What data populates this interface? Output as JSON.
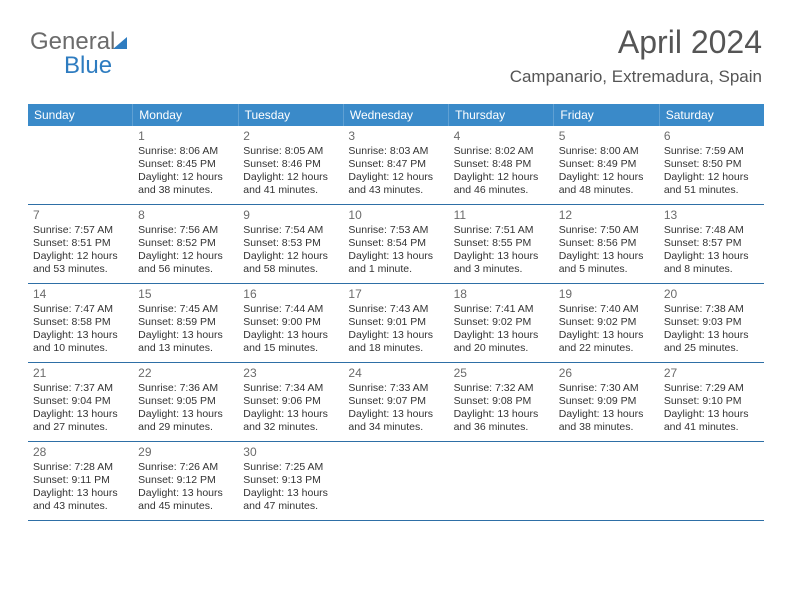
{
  "logo": {
    "text1": "General",
    "text2": "Blue"
  },
  "header": {
    "month": "April 2024",
    "location": "Campanario, Extremadura, Spain"
  },
  "colors": {
    "accent": "#3a8ac9",
    "rule": "#2e6fa6",
    "text": "#333333",
    "muted": "#6b6b6b"
  },
  "weekdays": [
    "Sunday",
    "Monday",
    "Tuesday",
    "Wednesday",
    "Thursday",
    "Friday",
    "Saturday"
  ],
  "weeks": [
    [
      null,
      {
        "n": "1",
        "sr": "Sunrise: 8:06 AM",
        "ss": "Sunset: 8:45 PM",
        "d1": "Daylight: 12 hours",
        "d2": "and 38 minutes."
      },
      {
        "n": "2",
        "sr": "Sunrise: 8:05 AM",
        "ss": "Sunset: 8:46 PM",
        "d1": "Daylight: 12 hours",
        "d2": "and 41 minutes."
      },
      {
        "n": "3",
        "sr": "Sunrise: 8:03 AM",
        "ss": "Sunset: 8:47 PM",
        "d1": "Daylight: 12 hours",
        "d2": "and 43 minutes."
      },
      {
        "n": "4",
        "sr": "Sunrise: 8:02 AM",
        "ss": "Sunset: 8:48 PM",
        "d1": "Daylight: 12 hours",
        "d2": "and 46 minutes."
      },
      {
        "n": "5",
        "sr": "Sunrise: 8:00 AM",
        "ss": "Sunset: 8:49 PM",
        "d1": "Daylight: 12 hours",
        "d2": "and 48 minutes."
      },
      {
        "n": "6",
        "sr": "Sunrise: 7:59 AM",
        "ss": "Sunset: 8:50 PM",
        "d1": "Daylight: 12 hours",
        "d2": "and 51 minutes."
      }
    ],
    [
      {
        "n": "7",
        "sr": "Sunrise: 7:57 AM",
        "ss": "Sunset: 8:51 PM",
        "d1": "Daylight: 12 hours",
        "d2": "and 53 minutes."
      },
      {
        "n": "8",
        "sr": "Sunrise: 7:56 AM",
        "ss": "Sunset: 8:52 PM",
        "d1": "Daylight: 12 hours",
        "d2": "and 56 minutes."
      },
      {
        "n": "9",
        "sr": "Sunrise: 7:54 AM",
        "ss": "Sunset: 8:53 PM",
        "d1": "Daylight: 12 hours",
        "d2": "and 58 minutes."
      },
      {
        "n": "10",
        "sr": "Sunrise: 7:53 AM",
        "ss": "Sunset: 8:54 PM",
        "d1": "Daylight: 13 hours",
        "d2": "and 1 minute."
      },
      {
        "n": "11",
        "sr": "Sunrise: 7:51 AM",
        "ss": "Sunset: 8:55 PM",
        "d1": "Daylight: 13 hours",
        "d2": "and 3 minutes."
      },
      {
        "n": "12",
        "sr": "Sunrise: 7:50 AM",
        "ss": "Sunset: 8:56 PM",
        "d1": "Daylight: 13 hours",
        "d2": "and 5 minutes."
      },
      {
        "n": "13",
        "sr": "Sunrise: 7:48 AM",
        "ss": "Sunset: 8:57 PM",
        "d1": "Daylight: 13 hours",
        "d2": "and 8 minutes."
      }
    ],
    [
      {
        "n": "14",
        "sr": "Sunrise: 7:47 AM",
        "ss": "Sunset: 8:58 PM",
        "d1": "Daylight: 13 hours",
        "d2": "and 10 minutes."
      },
      {
        "n": "15",
        "sr": "Sunrise: 7:45 AM",
        "ss": "Sunset: 8:59 PM",
        "d1": "Daylight: 13 hours",
        "d2": "and 13 minutes."
      },
      {
        "n": "16",
        "sr": "Sunrise: 7:44 AM",
        "ss": "Sunset: 9:00 PM",
        "d1": "Daylight: 13 hours",
        "d2": "and 15 minutes."
      },
      {
        "n": "17",
        "sr": "Sunrise: 7:43 AM",
        "ss": "Sunset: 9:01 PM",
        "d1": "Daylight: 13 hours",
        "d2": "and 18 minutes."
      },
      {
        "n": "18",
        "sr": "Sunrise: 7:41 AM",
        "ss": "Sunset: 9:02 PM",
        "d1": "Daylight: 13 hours",
        "d2": "and 20 minutes."
      },
      {
        "n": "19",
        "sr": "Sunrise: 7:40 AM",
        "ss": "Sunset: 9:02 PM",
        "d1": "Daylight: 13 hours",
        "d2": "and 22 minutes."
      },
      {
        "n": "20",
        "sr": "Sunrise: 7:38 AM",
        "ss": "Sunset: 9:03 PM",
        "d1": "Daylight: 13 hours",
        "d2": "and 25 minutes."
      }
    ],
    [
      {
        "n": "21",
        "sr": "Sunrise: 7:37 AM",
        "ss": "Sunset: 9:04 PM",
        "d1": "Daylight: 13 hours",
        "d2": "and 27 minutes."
      },
      {
        "n": "22",
        "sr": "Sunrise: 7:36 AM",
        "ss": "Sunset: 9:05 PM",
        "d1": "Daylight: 13 hours",
        "d2": "and 29 minutes."
      },
      {
        "n": "23",
        "sr": "Sunrise: 7:34 AM",
        "ss": "Sunset: 9:06 PM",
        "d1": "Daylight: 13 hours",
        "d2": "and 32 minutes."
      },
      {
        "n": "24",
        "sr": "Sunrise: 7:33 AM",
        "ss": "Sunset: 9:07 PM",
        "d1": "Daylight: 13 hours",
        "d2": "and 34 minutes."
      },
      {
        "n": "25",
        "sr": "Sunrise: 7:32 AM",
        "ss": "Sunset: 9:08 PM",
        "d1": "Daylight: 13 hours",
        "d2": "and 36 minutes."
      },
      {
        "n": "26",
        "sr": "Sunrise: 7:30 AM",
        "ss": "Sunset: 9:09 PM",
        "d1": "Daylight: 13 hours",
        "d2": "and 38 minutes."
      },
      {
        "n": "27",
        "sr": "Sunrise: 7:29 AM",
        "ss": "Sunset: 9:10 PM",
        "d1": "Daylight: 13 hours",
        "d2": "and 41 minutes."
      }
    ],
    [
      {
        "n": "28",
        "sr": "Sunrise: 7:28 AM",
        "ss": "Sunset: 9:11 PM",
        "d1": "Daylight: 13 hours",
        "d2": "and 43 minutes."
      },
      {
        "n": "29",
        "sr": "Sunrise: 7:26 AM",
        "ss": "Sunset: 9:12 PM",
        "d1": "Daylight: 13 hours",
        "d2": "and 45 minutes."
      },
      {
        "n": "30",
        "sr": "Sunrise: 7:25 AM",
        "ss": "Sunset: 9:13 PM",
        "d1": "Daylight: 13 hours",
        "d2": "and 47 minutes."
      },
      null,
      null,
      null,
      null
    ]
  ]
}
